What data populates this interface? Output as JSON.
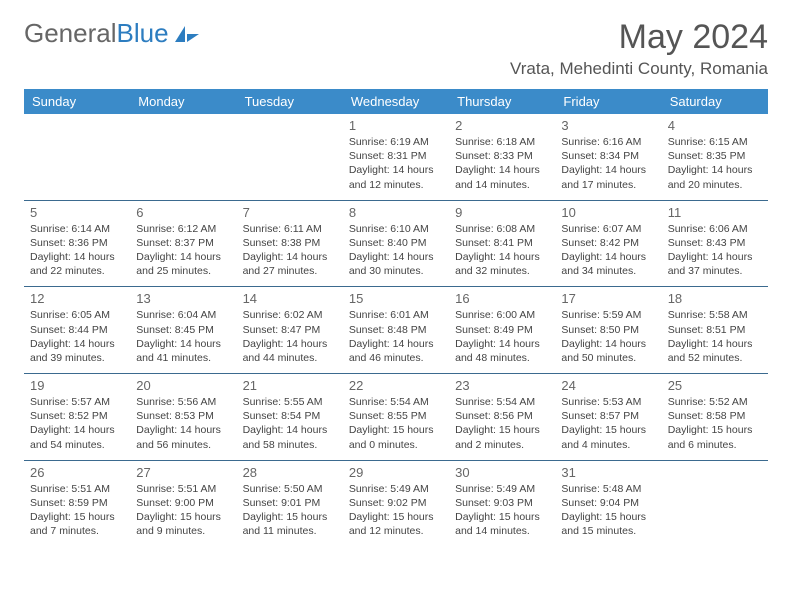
{
  "logo": {
    "text1": "General",
    "text2": "Blue"
  },
  "header": {
    "month_title": "May 2024",
    "location": "Vrata, Mehedinti County, Romania"
  },
  "colors": {
    "header_bg": "#3b8bc9",
    "header_fg": "#ffffff",
    "row_border": "#3b6a8f",
    "text": "#444444",
    "logo_gray": "#666666",
    "logo_blue": "#2d7dc0"
  },
  "weekdays": [
    "Sunday",
    "Monday",
    "Tuesday",
    "Wednesday",
    "Thursday",
    "Friday",
    "Saturday"
  ],
  "weeks": [
    [
      {
        "day": "",
        "sunrise": "",
        "sunset": "",
        "daylight": ""
      },
      {
        "day": "",
        "sunrise": "",
        "sunset": "",
        "daylight": ""
      },
      {
        "day": "",
        "sunrise": "",
        "sunset": "",
        "daylight": ""
      },
      {
        "day": "1",
        "sunrise": "Sunrise: 6:19 AM",
        "sunset": "Sunset: 8:31 PM",
        "daylight": "Daylight: 14 hours and 12 minutes."
      },
      {
        "day": "2",
        "sunrise": "Sunrise: 6:18 AM",
        "sunset": "Sunset: 8:33 PM",
        "daylight": "Daylight: 14 hours and 14 minutes."
      },
      {
        "day": "3",
        "sunrise": "Sunrise: 6:16 AM",
        "sunset": "Sunset: 8:34 PM",
        "daylight": "Daylight: 14 hours and 17 minutes."
      },
      {
        "day": "4",
        "sunrise": "Sunrise: 6:15 AM",
        "sunset": "Sunset: 8:35 PM",
        "daylight": "Daylight: 14 hours and 20 minutes."
      }
    ],
    [
      {
        "day": "5",
        "sunrise": "Sunrise: 6:14 AM",
        "sunset": "Sunset: 8:36 PM",
        "daylight": "Daylight: 14 hours and 22 minutes."
      },
      {
        "day": "6",
        "sunrise": "Sunrise: 6:12 AM",
        "sunset": "Sunset: 8:37 PM",
        "daylight": "Daylight: 14 hours and 25 minutes."
      },
      {
        "day": "7",
        "sunrise": "Sunrise: 6:11 AM",
        "sunset": "Sunset: 8:38 PM",
        "daylight": "Daylight: 14 hours and 27 minutes."
      },
      {
        "day": "8",
        "sunrise": "Sunrise: 6:10 AM",
        "sunset": "Sunset: 8:40 PM",
        "daylight": "Daylight: 14 hours and 30 minutes."
      },
      {
        "day": "9",
        "sunrise": "Sunrise: 6:08 AM",
        "sunset": "Sunset: 8:41 PM",
        "daylight": "Daylight: 14 hours and 32 minutes."
      },
      {
        "day": "10",
        "sunrise": "Sunrise: 6:07 AM",
        "sunset": "Sunset: 8:42 PM",
        "daylight": "Daylight: 14 hours and 34 minutes."
      },
      {
        "day": "11",
        "sunrise": "Sunrise: 6:06 AM",
        "sunset": "Sunset: 8:43 PM",
        "daylight": "Daylight: 14 hours and 37 minutes."
      }
    ],
    [
      {
        "day": "12",
        "sunrise": "Sunrise: 6:05 AM",
        "sunset": "Sunset: 8:44 PM",
        "daylight": "Daylight: 14 hours and 39 minutes."
      },
      {
        "day": "13",
        "sunrise": "Sunrise: 6:04 AM",
        "sunset": "Sunset: 8:45 PM",
        "daylight": "Daylight: 14 hours and 41 minutes."
      },
      {
        "day": "14",
        "sunrise": "Sunrise: 6:02 AM",
        "sunset": "Sunset: 8:47 PM",
        "daylight": "Daylight: 14 hours and 44 minutes."
      },
      {
        "day": "15",
        "sunrise": "Sunrise: 6:01 AM",
        "sunset": "Sunset: 8:48 PM",
        "daylight": "Daylight: 14 hours and 46 minutes."
      },
      {
        "day": "16",
        "sunrise": "Sunrise: 6:00 AM",
        "sunset": "Sunset: 8:49 PM",
        "daylight": "Daylight: 14 hours and 48 minutes."
      },
      {
        "day": "17",
        "sunrise": "Sunrise: 5:59 AM",
        "sunset": "Sunset: 8:50 PM",
        "daylight": "Daylight: 14 hours and 50 minutes."
      },
      {
        "day": "18",
        "sunrise": "Sunrise: 5:58 AM",
        "sunset": "Sunset: 8:51 PM",
        "daylight": "Daylight: 14 hours and 52 minutes."
      }
    ],
    [
      {
        "day": "19",
        "sunrise": "Sunrise: 5:57 AM",
        "sunset": "Sunset: 8:52 PM",
        "daylight": "Daylight: 14 hours and 54 minutes."
      },
      {
        "day": "20",
        "sunrise": "Sunrise: 5:56 AM",
        "sunset": "Sunset: 8:53 PM",
        "daylight": "Daylight: 14 hours and 56 minutes."
      },
      {
        "day": "21",
        "sunrise": "Sunrise: 5:55 AM",
        "sunset": "Sunset: 8:54 PM",
        "daylight": "Daylight: 14 hours and 58 minutes."
      },
      {
        "day": "22",
        "sunrise": "Sunrise: 5:54 AM",
        "sunset": "Sunset: 8:55 PM",
        "daylight": "Daylight: 15 hours and 0 minutes."
      },
      {
        "day": "23",
        "sunrise": "Sunrise: 5:54 AM",
        "sunset": "Sunset: 8:56 PM",
        "daylight": "Daylight: 15 hours and 2 minutes."
      },
      {
        "day": "24",
        "sunrise": "Sunrise: 5:53 AM",
        "sunset": "Sunset: 8:57 PM",
        "daylight": "Daylight: 15 hours and 4 minutes."
      },
      {
        "day": "25",
        "sunrise": "Sunrise: 5:52 AM",
        "sunset": "Sunset: 8:58 PM",
        "daylight": "Daylight: 15 hours and 6 minutes."
      }
    ],
    [
      {
        "day": "26",
        "sunrise": "Sunrise: 5:51 AM",
        "sunset": "Sunset: 8:59 PM",
        "daylight": "Daylight: 15 hours and 7 minutes."
      },
      {
        "day": "27",
        "sunrise": "Sunrise: 5:51 AM",
        "sunset": "Sunset: 9:00 PM",
        "daylight": "Daylight: 15 hours and 9 minutes."
      },
      {
        "day": "28",
        "sunrise": "Sunrise: 5:50 AM",
        "sunset": "Sunset: 9:01 PM",
        "daylight": "Daylight: 15 hours and 11 minutes."
      },
      {
        "day": "29",
        "sunrise": "Sunrise: 5:49 AM",
        "sunset": "Sunset: 9:02 PM",
        "daylight": "Daylight: 15 hours and 12 minutes."
      },
      {
        "day": "30",
        "sunrise": "Sunrise: 5:49 AM",
        "sunset": "Sunset: 9:03 PM",
        "daylight": "Daylight: 15 hours and 14 minutes."
      },
      {
        "day": "31",
        "sunrise": "Sunrise: 5:48 AM",
        "sunset": "Sunset: 9:04 PM",
        "daylight": "Daylight: 15 hours and 15 minutes."
      },
      {
        "day": "",
        "sunrise": "",
        "sunset": "",
        "daylight": ""
      }
    ]
  ]
}
